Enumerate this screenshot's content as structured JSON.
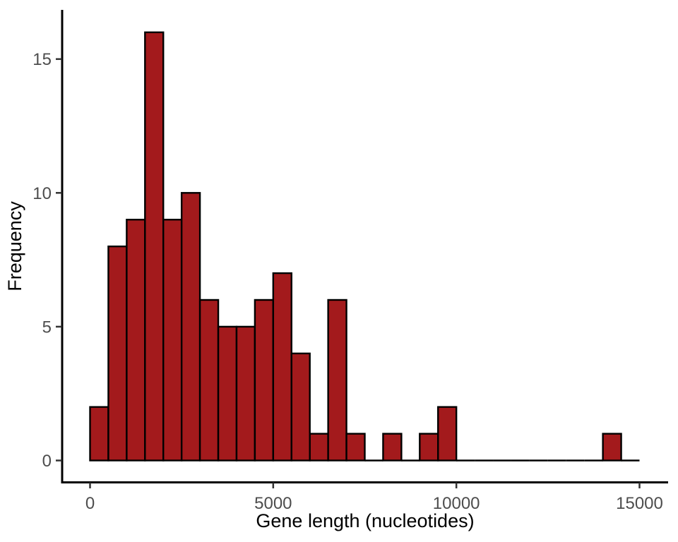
{
  "chart_data": {
    "type": "bar",
    "subtype": "histogram",
    "title": "",
    "xlabel": "Gene length (nucleotides)",
    "ylabel": "Frequency",
    "bin_start": 0,
    "bin_width": 500,
    "counts": [
      2,
      8,
      9,
      16,
      9,
      10,
      6,
      5,
      5,
      6,
      7,
      4,
      1,
      6,
      1,
      0,
      1,
      0,
      1,
      2,
      0,
      0,
      0,
      0,
      0,
      0,
      0,
      0,
      1,
      0
    ],
    "bins": [
      {
        "range": "0-500",
        "count": 2
      },
      {
        "range": "500-1000",
        "count": 8
      },
      {
        "range": "1000-1500",
        "count": 9
      },
      {
        "range": "1500-2000",
        "count": 16
      },
      {
        "range": "2000-2500",
        "count": 9
      },
      {
        "range": "2500-3000",
        "count": 10
      },
      {
        "range": "3000-3500",
        "count": 6
      },
      {
        "range": "3500-4000",
        "count": 5
      },
      {
        "range": "4000-4500",
        "count": 5
      },
      {
        "range": "4500-5000",
        "count": 6
      },
      {
        "range": "5000-5500",
        "count": 7
      },
      {
        "range": "5500-6000",
        "count": 4
      },
      {
        "range": "6000-6500",
        "count": 1
      },
      {
        "range": "6500-7000",
        "count": 6
      },
      {
        "range": "7000-7500",
        "count": 1
      },
      {
        "range": "7500-8000",
        "count": 0
      },
      {
        "range": "8000-8500",
        "count": 1
      },
      {
        "range": "8500-9000",
        "count": 0
      },
      {
        "range": "9000-9500",
        "count": 1
      },
      {
        "range": "9500-10000",
        "count": 2
      },
      {
        "range": "10000-14000",
        "count": 0
      },
      {
        "range": "14000-14500",
        "count": 1
      },
      {
        "range": "14500-15000",
        "count": 0
      }
    ],
    "x_ticks": [
      {
        "value": 0,
        "label": "0"
      },
      {
        "value": 5000,
        "label": "5000"
      },
      {
        "value": 10000,
        "label": "10000"
      },
      {
        "value": 15000,
        "label": "15000"
      }
    ],
    "y_ticks": [
      {
        "value": 0,
        "label": "0"
      },
      {
        "value": 5,
        "label": "5"
      },
      {
        "value": 10,
        "label": "10"
      },
      {
        "value": 15,
        "label": "15"
      }
    ],
    "xlim": [
      0,
      15000
    ],
    "ylim": [
      0,
      16.8
    ],
    "grid": false,
    "legend_position": "none",
    "style": {
      "bar_fill": "#A31A1C",
      "bar_stroke": "#000000",
      "axis_line_color": "#000000",
      "tick_mark_color": "#333333",
      "tick_label_color": "#4D4D4D",
      "axis_title_color": "#000000",
      "background": "#FFFFFF"
    }
  }
}
